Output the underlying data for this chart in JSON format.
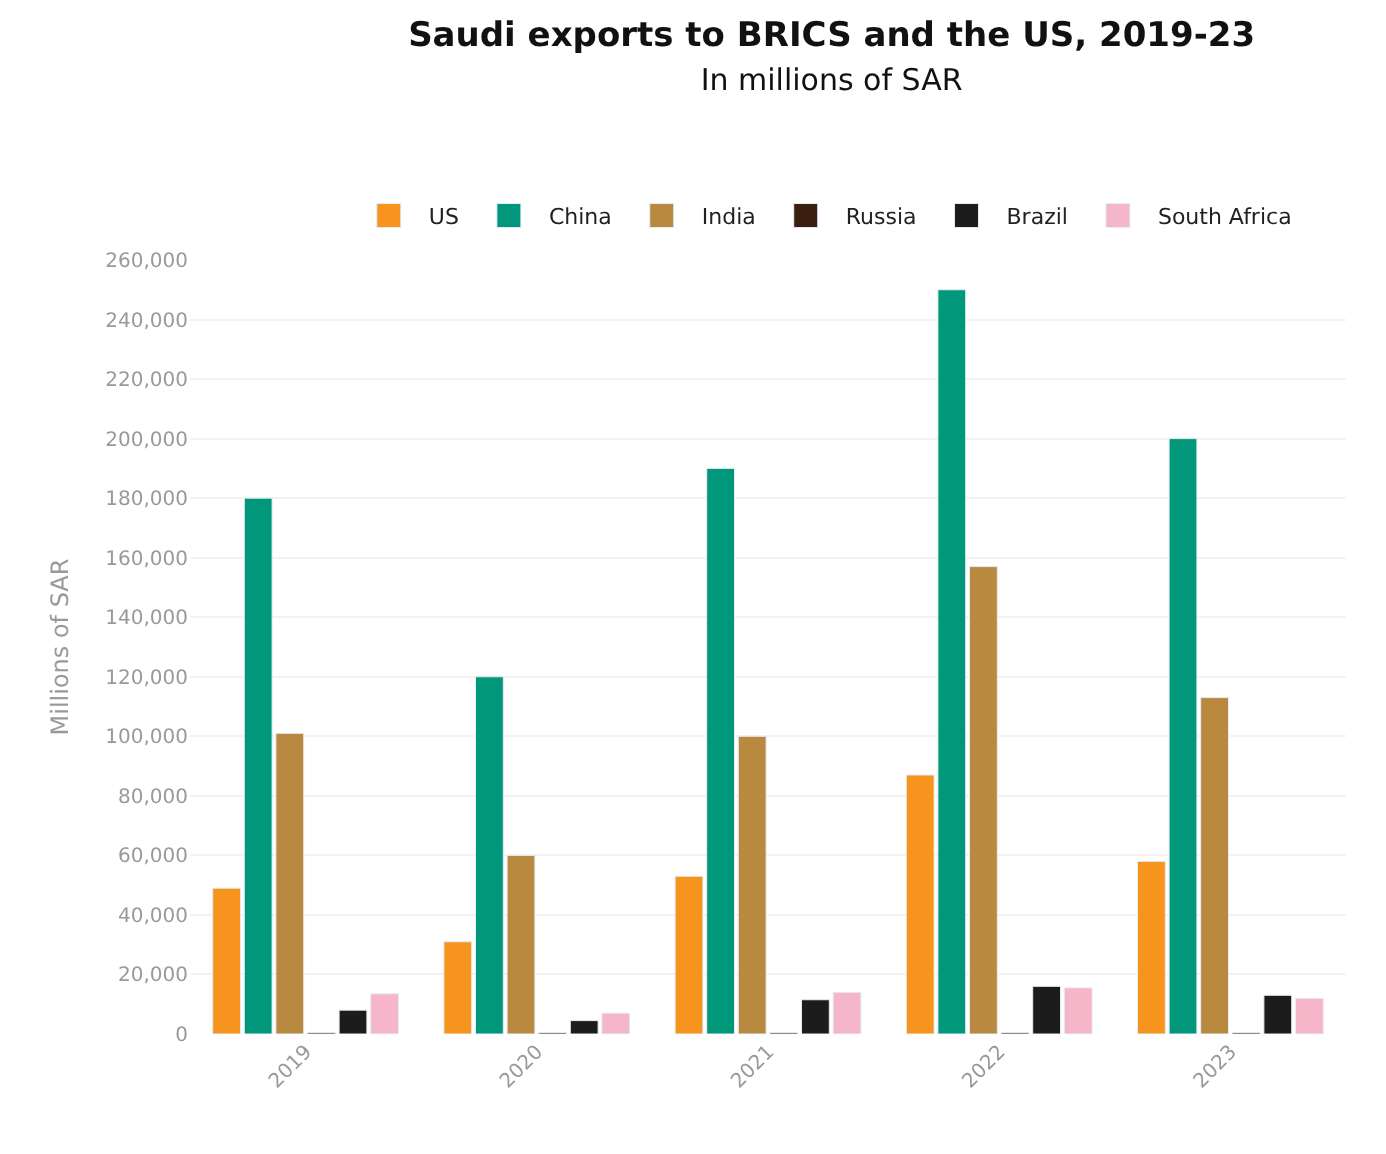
{
  "chart_data": {
    "type": "bar",
    "title": "Saudi exports to BRICS and the US, 2019-23",
    "subtitle": "In millions of SAR",
    "ylabel": "Millions of SAR",
    "categories": [
      "2019",
      "2020",
      "2021",
      "2022",
      "2023"
    ],
    "series": [
      {
        "name": "US",
        "color": "#f7941d",
        "values": [
          49000,
          31000,
          53000,
          87000,
          58000
        ]
      },
      {
        "name": "China",
        "color": "#00977a",
        "values": [
          180000,
          120000,
          190000,
          250000,
          200000
        ]
      },
      {
        "name": "India",
        "color": "#b8893e",
        "values": [
          101000,
          60000,
          100000,
          157000,
          113000
        ]
      },
      {
        "name": "Russia",
        "color": "#3b1f0e",
        "values": [
          500,
          500,
          500,
          500,
          500
        ]
      },
      {
        "name": "Brazil",
        "color": "#1c1c1c",
        "values": [
          8000,
          4500,
          11500,
          16000,
          13000
        ]
      },
      {
        "name": "South Africa",
        "color": "#f4b6c8",
        "values": [
          13500,
          7000,
          14000,
          15500,
          12000
        ]
      }
    ],
    "ylim": [
      0,
      260000
    ],
    "yticks": [
      {
        "value": 0,
        "label": "0"
      },
      {
        "value": 20000,
        "label": "20,000"
      },
      {
        "value": 40000,
        "label": "40,000"
      },
      {
        "value": 60000,
        "label": "60,000"
      },
      {
        "value": 80000,
        "label": "80,000"
      },
      {
        "value": 100000,
        "label": "100,000"
      },
      {
        "value": 120000,
        "label": "120,000"
      },
      {
        "value": 140000,
        "label": "140,000"
      },
      {
        "value": 160000,
        "label": "160,000"
      },
      {
        "value": 180000,
        "label": "180,000"
      },
      {
        "value": 200000,
        "label": "200,000"
      },
      {
        "value": 220000,
        "label": "220,000"
      },
      {
        "value": 240000,
        "label": "240,000"
      },
      {
        "value": 260000,
        "label": "260,000"
      }
    ],
    "grid": "y",
    "legend": "top"
  }
}
